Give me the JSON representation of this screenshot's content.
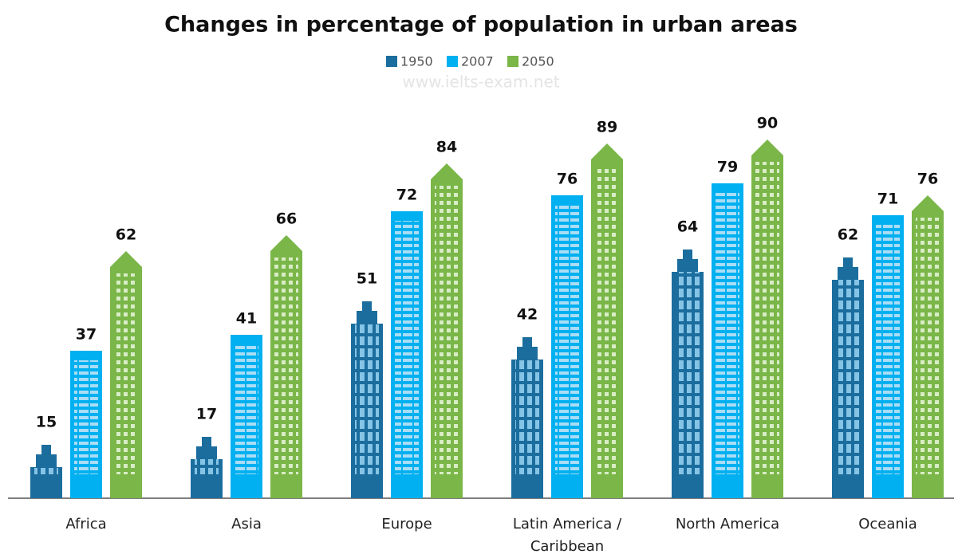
{
  "chart_data": {
    "type": "bar",
    "title": "Changes in percentage of population in urban areas",
    "watermark": "www.ielts-exam.net",
    "categories": [
      "Africa",
      "Asia",
      "Europe",
      "Latin America / Caribbean",
      "North America",
      "Oceania"
    ],
    "series": [
      {
        "name": "1950",
        "color": "#1b6d9e",
        "values": [
          15,
          17,
          51,
          42,
          64,
          62
        ]
      },
      {
        "name": "2007",
        "color": "#00b0f0",
        "values": [
          37,
          41,
          72,
          76,
          79,
          71
        ]
      },
      {
        "name": "2050",
        "color": "#7ab648",
        "values": [
          62,
          66,
          84,
          89,
          90,
          76
        ]
      }
    ],
    "ylim": [
      0,
      100
    ]
  }
}
